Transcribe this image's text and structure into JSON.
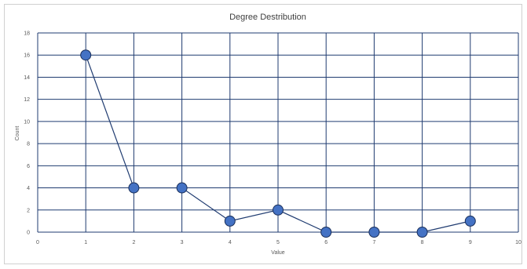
{
  "chart_data": {
    "type": "line",
    "title": "Degree Destribution",
    "xlabel": "Value",
    "ylabel": "Count",
    "xlim": [
      0,
      10
    ],
    "ylim": [
      0,
      18
    ],
    "x_ticks": [
      0,
      1,
      2,
      3,
      4,
      5,
      6,
      7,
      8,
      9,
      10
    ],
    "y_ticks": [
      0,
      2,
      4,
      6,
      8,
      10,
      12,
      14,
      16,
      18
    ],
    "grid": true,
    "legend": "none",
    "series": [
      {
        "x": [
          1,
          2,
          3,
          4,
          5,
          6,
          7,
          8,
          9
        ],
        "values": [
          16,
          4,
          4,
          1,
          2,
          0,
          0,
          0,
          1
        ],
        "color": "#4472c4",
        "line_color": "#1f3b70"
      }
    ]
  }
}
